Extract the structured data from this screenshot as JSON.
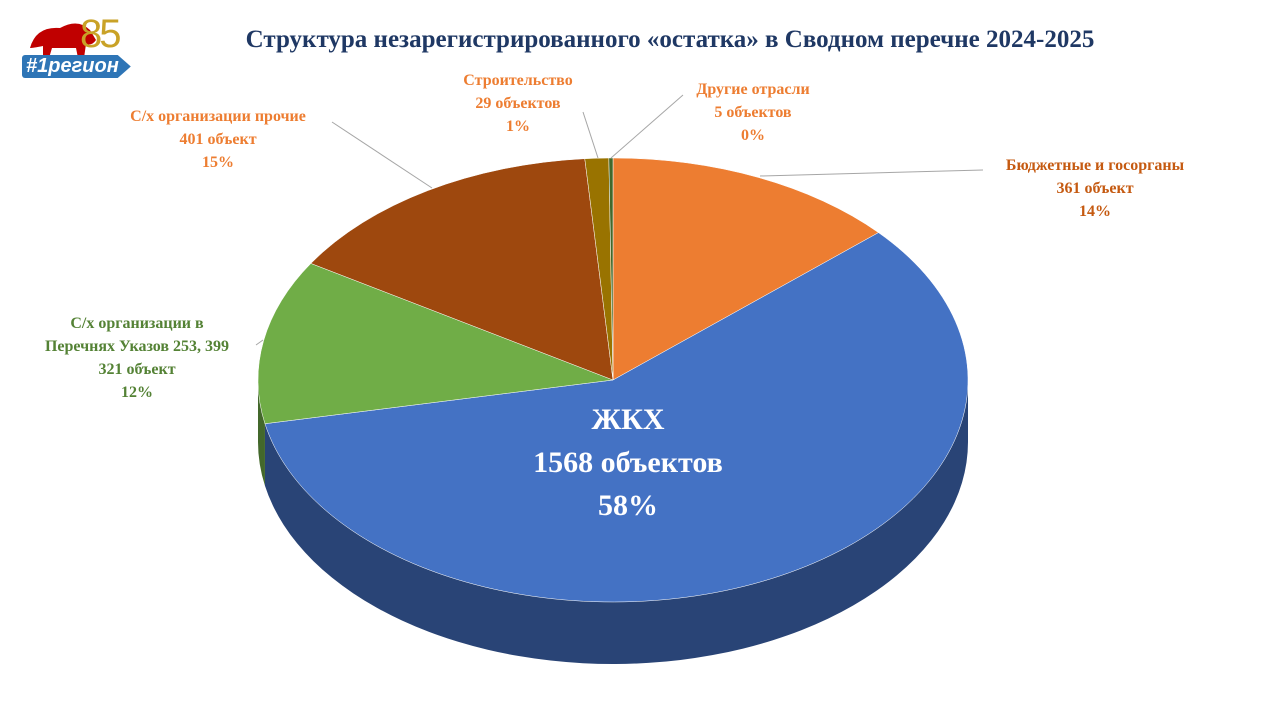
{
  "chart_data": {
    "type": "pie",
    "title": "Структура незарегистрированного «остатка» в Сводном перечне 2024-2025",
    "logo_text": "#1регион",
    "logo_badge": "85",
    "categories": [
      "Бюджетные и госорганы",
      "ЖКХ",
      "С/х организации в\nПеречнях Указов 253, 399",
      "С/х организации прочие",
      "Строительство",
      "Другие отрасли"
    ],
    "values": [
      361,
      1568,
      321,
      401,
      29,
      5
    ],
    "value_labels": [
      "361 объект",
      "1568 объектов",
      "321 объект",
      "401 объект",
      "29 объектов",
      "5 объектов"
    ],
    "percent_labels": [
      "14%",
      "58%",
      "12%",
      "15%",
      "1%",
      "0%"
    ],
    "colors": [
      "#ED7D31",
      "#4472C4",
      "#70AD47",
      "#9E480E",
      "#997300",
      "#43682B"
    ],
    "start_angle": "top",
    "direction": "clockwise",
    "style": "3d"
  }
}
